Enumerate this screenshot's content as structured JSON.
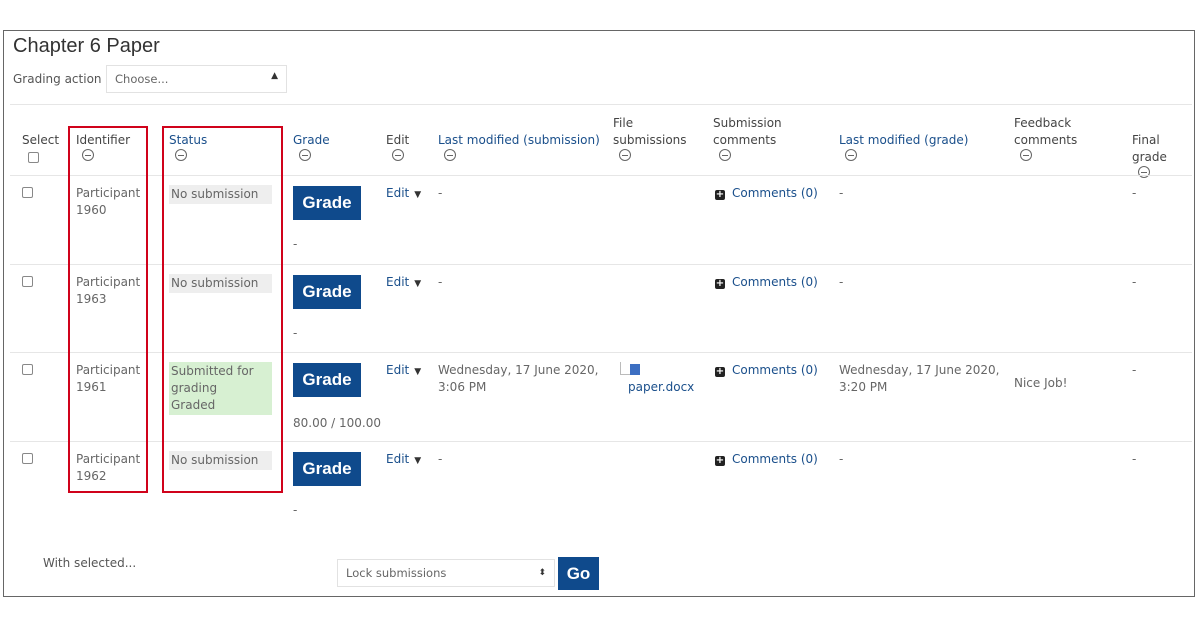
{
  "title": "Chapter 6 Paper",
  "grading_action": {
    "label": "Grading action",
    "value": "Choose..."
  },
  "columns": [
    {
      "label": "Select",
      "link": false
    },
    {
      "label": "Identifier",
      "link": false
    },
    {
      "label": "Status",
      "link": true
    },
    {
      "label": "Grade",
      "link": true
    },
    {
      "label": "Edit",
      "link": false
    },
    {
      "label": "Last modified (submission)",
      "link": true
    },
    {
      "label": "File submissions",
      "link": false
    },
    {
      "label": "Submission comments",
      "link": false
    },
    {
      "label": "Last modified (grade)",
      "link": true
    },
    {
      "label": "Feedback comments",
      "link": false
    },
    {
      "label": "Final grade",
      "link": false
    }
  ],
  "rows": [
    {
      "identifier": "Participant 1960",
      "status": [
        "No submission"
      ],
      "status_color": "#eeeeee",
      "grade_btn": "Grade",
      "grade_value": "-",
      "edit": "Edit",
      "last_mod_sub": "-",
      "file": "",
      "comments": "Comments (0)",
      "last_mod_grade": "-",
      "feedback": "",
      "final": "-"
    },
    {
      "identifier": "Participant 1963",
      "status": [
        "No submission"
      ],
      "status_color": "#eeeeee",
      "grade_btn": "Grade",
      "grade_value": "-",
      "edit": "Edit",
      "last_mod_sub": "-",
      "file": "",
      "comments": "Comments (0)",
      "last_mod_grade": "-",
      "feedback": "",
      "final": "-"
    },
    {
      "identifier": "Participant 1961",
      "status": [
        "Submitted for grading",
        "Graded"
      ],
      "status_color": "#d7f0d2",
      "grade_btn": "Grade",
      "grade_value": "80.00 / 100.00",
      "edit": "Edit",
      "last_mod_sub": "Wednesday, 17 June 2020, 3:06 PM",
      "file": "paper.docx",
      "comments": "Comments (0)",
      "last_mod_grade": "Wednesday, 17 June 2020, 3:20 PM",
      "feedback": "Nice Job!",
      "final": "-"
    },
    {
      "identifier": "Participant 1962",
      "status": [
        "No submission"
      ],
      "status_color": "#eeeeee",
      "grade_btn": "Grade",
      "grade_value": "-",
      "edit": "Edit",
      "last_mod_sub": "-",
      "file": "",
      "comments": "Comments (0)",
      "last_mod_grade": "-",
      "feedback": "",
      "final": "-"
    }
  ],
  "footer": {
    "with_selected": "With selected...",
    "bulk_action": "Lock submissions",
    "go": "Go"
  },
  "colors": {
    "primary": "#0f4a8c",
    "highlight": "#d0021b",
    "link": "#1a4f8b"
  }
}
